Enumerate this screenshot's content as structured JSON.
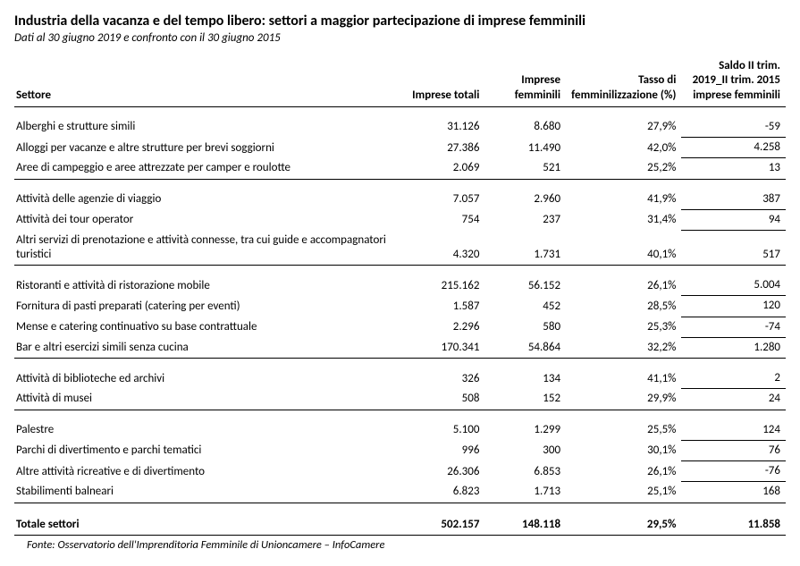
{
  "title": "Industria della vacanza e del tempo libero: settori a maggior partecipazione di imprese femminili",
  "subtitle": "Dati al 30 giugno 2019 e confronto con il 30 giugno 2015",
  "columns": [
    "Settore",
    "Imprese totali",
    "Imprese femminili",
    "Tasso di femminilizzazione (%)",
    "Saldo II trim. 2019_II trim. 2015 imprese femminili"
  ],
  "groups": [
    [
      {
        "settore": "Alberghi e strutture simili",
        "totali": "31.126",
        "femm": "8.680",
        "tasso": "27,9%",
        "saldo": "-59"
      },
      {
        "settore": "Alloggi per vacanze e altre strutture per brevi soggiorni",
        "totali": "27.386",
        "femm": "11.490",
        "tasso": "42,0%",
        "saldo": "4.258"
      },
      {
        "settore": "Aree di campeggio e aree attrezzate per camper e roulotte",
        "totali": "2.069",
        "femm": "521",
        "tasso": "25,2%",
        "saldo": "13"
      }
    ],
    [
      {
        "settore": "Attività delle agenzie di viaggio",
        "totali": "7.057",
        "femm": "2.960",
        "tasso": "41,9%",
        "saldo": "387"
      },
      {
        "settore": "Attività dei tour operator",
        "totali": "754",
        "femm": "237",
        "tasso": "31,4%",
        "saldo": "94"
      },
      {
        "settore": "Altri servizi di prenotazione e attività connesse, tra cui guide e accompagnatori turistici",
        "totali": "4.320",
        "femm": "1.731",
        "tasso": "40,1%",
        "saldo": "517"
      }
    ],
    [
      {
        "settore": "Ristoranti e attività di ristorazione mobile",
        "totali": "215.162",
        "femm": "56.152",
        "tasso": "26,1%",
        "saldo": "5.004"
      },
      {
        "settore": "Fornitura di pasti preparati (catering per eventi)",
        "totali": "1.587",
        "femm": "452",
        "tasso": "28,5%",
        "saldo": "120"
      },
      {
        "settore": "Mense e catering continuativo su base contrattuale",
        "totali": "2.296",
        "femm": "580",
        "tasso": "25,3%",
        "saldo": "-74"
      },
      {
        "settore": "Bar e altri esercizi simili senza cucina",
        "totali": "170.341",
        "femm": "54.864",
        "tasso": "32,2%",
        "saldo": "1.280"
      }
    ],
    [
      {
        "settore": "Attività di biblioteche ed archivi",
        "totali": "326",
        "femm": "134",
        "tasso": "41,1%",
        "saldo": "2"
      },
      {
        "settore": "Attività di musei",
        "totali": "508",
        "femm": "152",
        "tasso": "29,9%",
        "saldo": "24"
      }
    ],
    [
      {
        "settore": "Palestre",
        "totali": "5.100",
        "femm": "1.299",
        "tasso": "25,5%",
        "saldo": "124"
      },
      {
        "settore": "Parchi di divertimento e parchi tematici",
        "totali": "996",
        "femm": "300",
        "tasso": "30,1%",
        "saldo": "76"
      },
      {
        "settore": "Altre attività ricreative e di divertimento",
        "totali": "26.306",
        "femm": "6.853",
        "tasso": "26,1%",
        "saldo": "-76"
      },
      {
        "settore": "Stabilimenti balneari",
        "totali": "6.823",
        "femm": "1.713",
        "tasso": "25,1%",
        "saldo": "168"
      }
    ]
  ],
  "total": {
    "settore": "Totale settori",
    "totali": "502.157",
    "femm": "148.118",
    "tasso": "29,5%",
    "saldo": "11.858"
  },
  "source": "Fonte: Osservatorio dell'Imprenditoria Femminile di Unioncamere – InfoCamere",
  "style": {
    "background": "#ffffff",
    "text": "#000000",
    "font": "Calibri, Arial, sans-serif",
    "title_fontsize": 16,
    "body_fontsize": 13,
    "source_fontsize": 12.5
  }
}
